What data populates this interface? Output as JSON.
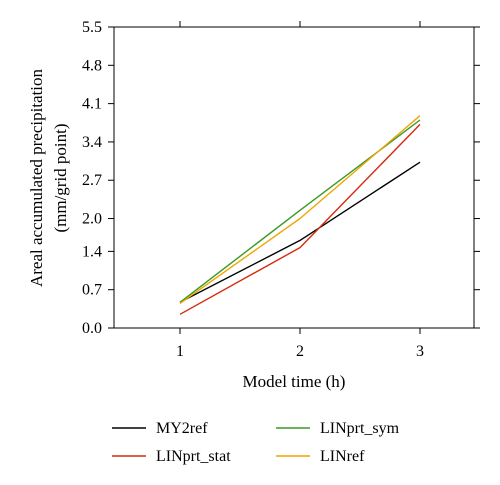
{
  "chart_data": {
    "type": "line",
    "title": "",
    "xlabel": "Model time (h)",
    "ylabel_lines": [
      "Areal accumulated precipitation",
      "(mm/grid point)"
    ],
    "x": [
      1,
      2,
      3
    ],
    "x_ticks": [
      "1",
      "2",
      "3"
    ],
    "xlim": [
      0.45,
      3.45
    ],
    "y_ticks": [
      "0.0",
      "0.7",
      "1.4",
      "2.0",
      "2.7",
      "3.4",
      "4.1",
      "4.8",
      "5.5"
    ],
    "ylim": [
      0,
      5.5
    ],
    "grid": false,
    "legend_position": "bottom",
    "series": [
      {
        "name": "MY2ref",
        "color": "#000000",
        "values": [
          0.47,
          1.6,
          3.03
        ]
      },
      {
        "name": "LINprt_stat",
        "color": "#d62a0e",
        "values": [
          0.25,
          1.47,
          3.72
        ]
      },
      {
        "name": "LINprt_sym",
        "color": "#3a9a25",
        "values": [
          0.47,
          2.15,
          3.8
        ]
      },
      {
        "name": "LINref",
        "color": "#f0a400",
        "values": [
          0.45,
          2.0,
          3.88
        ]
      }
    ]
  }
}
